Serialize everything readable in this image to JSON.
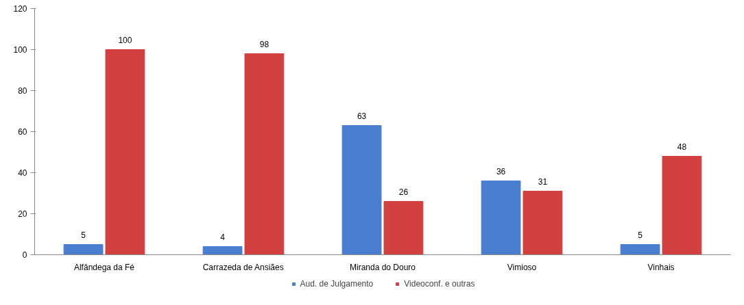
{
  "chart_data": {
    "type": "bar",
    "categories": [
      "Alfândega da Fé",
      "Carrazeda de Ansiães",
      "Miranda do Douro",
      "Vimioso",
      "Vinhais"
    ],
    "series": [
      {
        "name": "Aud. de Julgamento",
        "color": "#4a7fd0",
        "values": [
          5,
          4,
          63,
          36,
          5
        ]
      },
      {
        "name": "Videoconf. e outras",
        "color": "#d24040",
        "values": [
          100,
          98,
          26,
          31,
          48
        ]
      }
    ],
    "ylim": [
      0,
      120
    ],
    "yticks": [
      0,
      20,
      40,
      60,
      80,
      100,
      120
    ],
    "grid": false,
    "legend": "bottom",
    "data_labels": true
  }
}
